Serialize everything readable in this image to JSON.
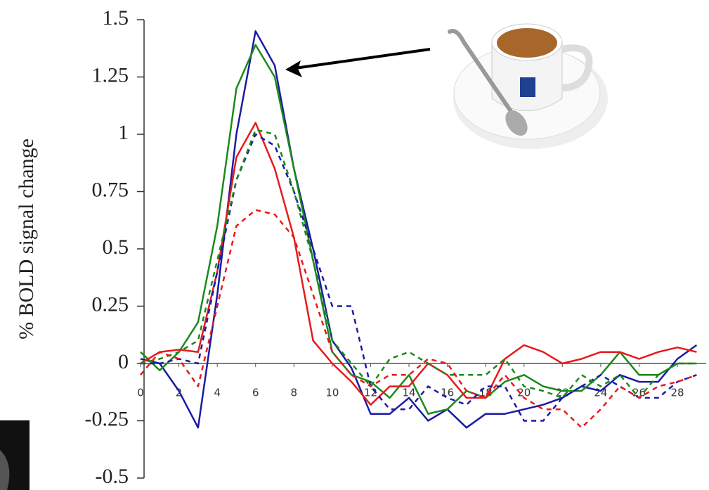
{
  "chart_data": {
    "type": "line",
    "y_label": "% BOLD signal change",
    "x": [
      0,
      1,
      2,
      3,
      4,
      5,
      6,
      7,
      8,
      9,
      10,
      11,
      12,
      13,
      14,
      15,
      16,
      17,
      18,
      19,
      20,
      21,
      22,
      23,
      24,
      25,
      26,
      27,
      28,
      29
    ],
    "xlim": [
      0,
      29.5
    ],
    "xticks": [
      0,
      2,
      4,
      6,
      8,
      10,
      12,
      14,
      16,
      18,
      20,
      22,
      24,
      26,
      28
    ],
    "ylim": [
      -0.5,
      1.5
    ],
    "yticks": [
      -0.5,
      -0.25,
      0,
      0.25,
      0.5,
      0.75,
      1,
      1.25,
      1.5
    ],
    "series": [
      {
        "color": "#1b1ba3",
        "dashed": false,
        "values": [
          0.02,
          0,
          -0.12,
          -0.28,
          0.3,
          1.0,
          1.45,
          1.3,
          0.85,
          0.5,
          0.1,
          -0.02,
          -0.22,
          -0.22,
          -0.15,
          -0.25,
          -0.2,
          -0.28,
          -0.22,
          -0.22,
          -0.2,
          -0.18,
          -0.15,
          -0.1,
          -0.12,
          -0.05,
          -0.08,
          -0.08,
          0.02,
          0.08
        ]
      },
      {
        "color": "#1a8a1a",
        "dashed": false,
        "values": [
          0.05,
          -0.03,
          0.05,
          0.18,
          0.6,
          1.2,
          1.39,
          1.25,
          0.85,
          0.45,
          0.05,
          -0.05,
          -0.08,
          -0.15,
          -0.05,
          -0.22,
          -0.2,
          -0.12,
          -0.15,
          -0.08,
          -0.05,
          -0.1,
          -0.12,
          -0.12,
          -0.05,
          0.05,
          -0.05,
          -0.05,
          0,
          0
        ]
      },
      {
        "color": "#e8191c",
        "dashed": false,
        "values": [
          0,
          0.05,
          0.06,
          0.05,
          0.4,
          0.9,
          1.05,
          0.85,
          0.55,
          0.1,
          0,
          -0.08,
          -0.18,
          -0.1,
          -0.1,
          0,
          -0.05,
          -0.15,
          -0.15,
          0.02,
          0.08,
          0.05,
          0,
          0.02,
          0.05,
          0.05,
          0.02,
          0.05,
          0.07,
          0.05
        ]
      },
      {
        "color": "#1b1ba3",
        "dashed": true,
        "values": [
          0,
          0,
          0.02,
          0,
          0.4,
          0.8,
          1.0,
          0.95,
          0.75,
          0.5,
          0.25,
          0.25,
          -0.1,
          -0.2,
          -0.2,
          -0.1,
          -0.15,
          -0.18,
          -0.1,
          -0.1,
          -0.25,
          -0.25,
          -0.15,
          -0.1,
          -0.05,
          -0.1,
          -0.15,
          -0.15,
          -0.08,
          -0.05
        ]
      },
      {
        "color": "#1a8a1a",
        "dashed": true,
        "values": [
          0,
          0.02,
          0.05,
          0.1,
          0.45,
          0.8,
          1.02,
          1.0,
          0.75,
          0.45,
          0.1,
          0,
          -0.1,
          0.02,
          0.05,
          0,
          -0.05,
          -0.05,
          -0.05,
          0.02,
          -0.1,
          -0.12,
          -0.15,
          -0.05,
          -0.1,
          -0.05,
          -0.15,
          -0.05,
          0,
          0
        ]
      },
      {
        "color": "#e8191c",
        "dashed": true,
        "values": [
          -0.05,
          0.05,
          0.02,
          -0.1,
          0.25,
          0.6,
          0.67,
          0.65,
          0.55,
          0.3,
          0.05,
          -0.05,
          -0.1,
          -0.05,
          -0.05,
          0.02,
          0,
          -0.12,
          -0.15,
          -0.05,
          -0.15,
          -0.2,
          -0.2,
          -0.28,
          -0.2,
          -0.1,
          -0.15,
          -0.1,
          -0.08,
          -0.05
        ]
      }
    ]
  }
}
